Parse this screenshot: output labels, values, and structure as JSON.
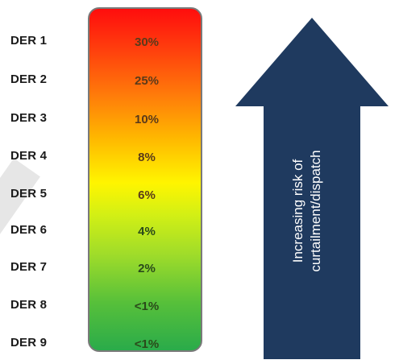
{
  "rows": [
    {
      "label": "DER 1",
      "pct": "30%"
    },
    {
      "label": "DER 2",
      "pct": "25%"
    },
    {
      "label": "DER 3",
      "pct": "10%"
    },
    {
      "label": "DER 4",
      "pct": "8%"
    },
    {
      "label": "DER 5",
      "pct": "6%"
    },
    {
      "label": "DER 6",
      "pct": "4%"
    },
    {
      "label": "DER 7",
      "pct": "2%"
    },
    {
      "label": "DER 8",
      "pct": "<1%"
    },
    {
      "label": "DER 9",
      "pct": "<1%"
    }
  ],
  "arrow": {
    "line1": "Increasing risk of",
    "line2": "curtailment/dispatch",
    "color": "#1f3a5f"
  }
}
